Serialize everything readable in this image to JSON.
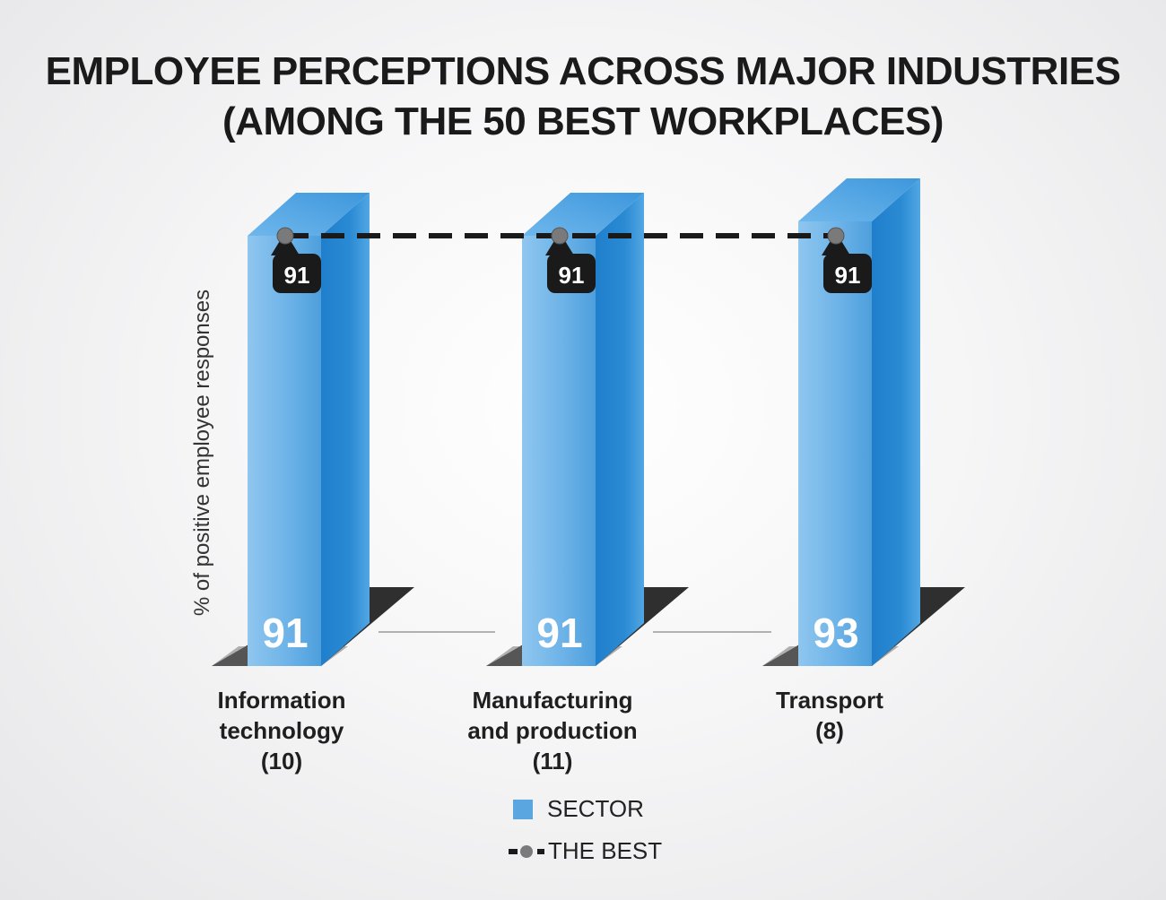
{
  "chart_data": {
    "type": "bar",
    "title_lines": [
      "EMPLOYEE PERCEPTIONS ACROSS MAJOR INDUSTRIES",
      "(AMONG THE 50 BEST  WORKPLACES)"
    ],
    "ylabel": "% of positive employee responses",
    "categories": [
      [
        "Information",
        "technology",
        "(10)"
      ],
      [
        "Manufacturing",
        "and production",
        "(11)"
      ],
      [
        "Transport",
        "(8)"
      ]
    ],
    "series": [
      {
        "name": "SECTOR",
        "values": [
          91,
          91,
          93
        ]
      },
      {
        "name": "THE BEST",
        "values": [
          91,
          91,
          91
        ]
      }
    ],
    "legend": [
      "SECTOR",
      "THE BEST"
    ],
    "colors": {
      "sector": "#5aa6e0",
      "sector_side": "#1f7fcc",
      "best": "#1a1a1a",
      "best_marker": "#7a7a7a"
    }
  }
}
